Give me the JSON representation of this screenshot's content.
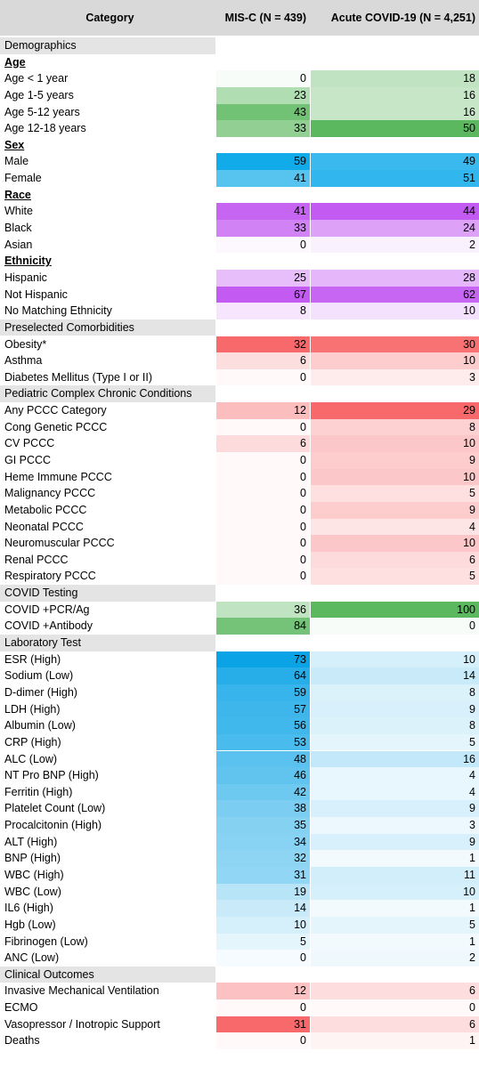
{
  "table": {
    "headers": [
      "Category",
      "MIS-C (N = 439)",
      "Acute COVID-19 (N = 4,251)"
    ],
    "rows": [
      {
        "section": "Demographics"
      },
      {
        "group": "Age",
        "color": "#5cb85f"
      },
      {
        "label": "Age < 1 year",
        "values": [
          0,
          18
        ]
      },
      {
        "label": "Age 1-5 years",
        "values": [
          23,
          16
        ]
      },
      {
        "label": "Age 5-12 years",
        "values": [
          43,
          16
        ]
      },
      {
        "label": "Age 12-18 years",
        "values": [
          33,
          50
        ]
      },
      {
        "group": "Sex",
        "color": "#12abea"
      },
      {
        "label": "Male",
        "values": [
          59,
          49
        ]
      },
      {
        "label": "Female",
        "values": [
          41,
          51
        ]
      },
      {
        "group": "Race",
        "color": "#c35af2"
      },
      {
        "label": "White",
        "values": [
          41,
          44
        ]
      },
      {
        "label": "Black",
        "values": [
          33,
          24
        ]
      },
      {
        "label": "Asian",
        "values": [
          0,
          2
        ]
      },
      {
        "group": "Ethnicity",
        "color": "#c35af2"
      },
      {
        "label": "Hispanic",
        "values": [
          25,
          28
        ]
      },
      {
        "label": "Not Hispanic",
        "values": [
          67,
          62
        ]
      },
      {
        "label": "No Matching Ethnicity",
        "values": [
          8,
          10
        ]
      },
      {
        "section": "Preselected Comorbidities",
        "color": "#f8696b"
      },
      {
        "label": "Obesity*",
        "values": [
          32,
          30
        ]
      },
      {
        "label": "Asthma",
        "values": [
          6,
          10
        ]
      },
      {
        "label": "Diabetes Mellitus (Type I or II)",
        "values": [
          0,
          3
        ]
      },
      {
        "section": "Pediatric Complex Chronic Conditions",
        "color": "#f8696b"
      },
      {
        "label": "Any PCCC Category",
        "values": [
          12,
          29
        ]
      },
      {
        "label": "Cong Genetic PCCC",
        "values": [
          0,
          8
        ]
      },
      {
        "label": "CV PCCC",
        "values": [
          6,
          10
        ]
      },
      {
        "label": "GI PCCC",
        "values": [
          0,
          9
        ]
      },
      {
        "label": "Heme Immune PCCC",
        "values": [
          0,
          10
        ]
      },
      {
        "label": "Malignancy PCCC",
        "values": [
          0,
          5
        ]
      },
      {
        "label": "Metabolic PCCC",
        "values": [
          0,
          9
        ]
      },
      {
        "label": "Neonatal PCCC",
        "values": [
          0,
          4
        ]
      },
      {
        "label": "Neuromuscular PCCC",
        "values": [
          0,
          10
        ]
      },
      {
        "label": "Renal PCCC",
        "values": [
          0,
          6
        ]
      },
      {
        "label": "Respiratory PCCC",
        "values": [
          0,
          5
        ]
      },
      {
        "section": "COVID Testing",
        "color": "#5cb85f"
      },
      {
        "label": "COVID +PCR/Ag",
        "values": [
          36,
          100
        ]
      },
      {
        "label": "COVID +Antibody",
        "values": [
          84,
          0
        ]
      },
      {
        "section": "Laboratory Test",
        "color": "#0aa3e6"
      },
      {
        "label": "ESR (High)",
        "values": [
          73,
          10
        ]
      },
      {
        "label": "Sodium (Low)",
        "values": [
          64,
          14
        ]
      },
      {
        "label": "D-dimer (High)",
        "values": [
          59,
          8
        ]
      },
      {
        "label": "LDH (High)",
        "values": [
          57,
          9
        ]
      },
      {
        "label": "Albumin (Low)",
        "values": [
          56,
          8
        ]
      },
      {
        "label": "CRP (High)",
        "values": [
          53,
          5
        ]
      },
      {
        "label": "ALC (Low)",
        "values": [
          48,
          16
        ]
      },
      {
        "label": "NT Pro BNP (High)",
        "values": [
          46,
          4
        ]
      },
      {
        "label": "Ferritin (High)",
        "values": [
          42,
          4
        ]
      },
      {
        "label": "Platelet Count (Low)",
        "values": [
          38,
          9
        ]
      },
      {
        "label": "Procalcitonin (High)",
        "values": [
          35,
          3
        ]
      },
      {
        "label": "ALT (High)",
        "values": [
          34,
          9
        ]
      },
      {
        "label": "BNP (High)",
        "values": [
          32,
          1
        ]
      },
      {
        "label": "WBC (High)",
        "values": [
          31,
          11
        ]
      },
      {
        "label": "WBC (Low)",
        "values": [
          19,
          10
        ]
      },
      {
        "label": "IL6 (High)",
        "values": [
          14,
          1
        ]
      },
      {
        "label": "Hgb (Low)",
        "values": [
          10,
          5
        ]
      },
      {
        "label": "Fibrinogen (Low)",
        "values": [
          5,
          1
        ]
      },
      {
        "label": "ANC (Low)",
        "values": [
          0,
          2
        ]
      },
      {
        "section": "Clinical Outcomes",
        "color": "#f8696b"
      },
      {
        "label": "Invasive Mechanical Ventilation",
        "values": [
          12,
          6
        ]
      },
      {
        "label": "ECMO",
        "values": [
          0,
          0
        ]
      },
      {
        "label": "Vasopressor / Inotropic Support",
        "values": [
          31,
          6
        ]
      },
      {
        "label": "Deaths",
        "values": [
          0,
          1
        ]
      }
    ]
  }
}
